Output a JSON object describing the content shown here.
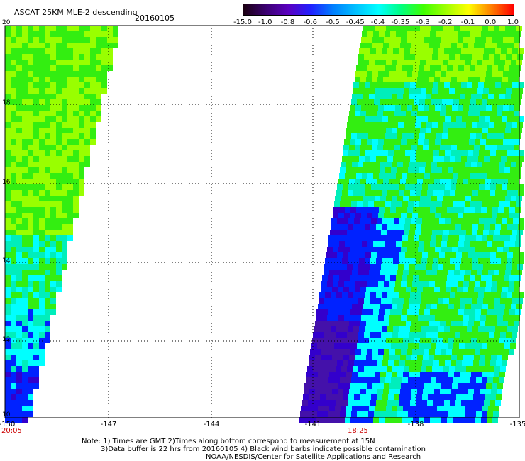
{
  "header": {
    "title": "ASCAT 25KM MLE-2 descending",
    "date": "20160105"
  },
  "colorbar": {
    "labels": [
      "-15.0",
      "-1.0",
      "-0.8",
      "-0.6",
      "-0.5",
      "-0.45",
      "-0.4",
      "-0.35",
      "-0.3",
      "-0.2",
      "-0.1",
      "0.0",
      "1.0"
    ],
    "colors": [
      "#1a0010",
      "#3a0070",
      "#5a00c0",
      "#2020ff",
      "#0080ff",
      "#00c0ff",
      "#00ffff",
      "#00ff80",
      "#40ff00",
      "#a0ff00",
      "#ffff00",
      "#ff8000",
      "#ff0000"
    ]
  },
  "axes": {
    "y_ticks": [
      "20",
      "18",
      "16",
      "14",
      "12",
      "10"
    ],
    "x_ticks": [
      "-150",
      "-147",
      "-144",
      "-141",
      "-138",
      "-135"
    ],
    "times": [
      "20:05",
      "18:25"
    ]
  },
  "notes": {
    "line1": "Note: 1) Times are GMT 2)Times along bottom correspond to measurement at 15N",
    "line2": "3)Data buffer is 22 hrs from 20160105 4) Black wind barbs indicate possible contamination",
    "line3": "NOAA/NESDIS/Center for Satellite Applications and Research"
  },
  "palette": {
    "green": "#33ee11",
    "lime": "#99ff00",
    "teal": "#00eebb",
    "cyan": "#00ffff",
    "blue": "#0022ff",
    "indigo": "#3300cc",
    "purple": "#4411aa"
  }
}
